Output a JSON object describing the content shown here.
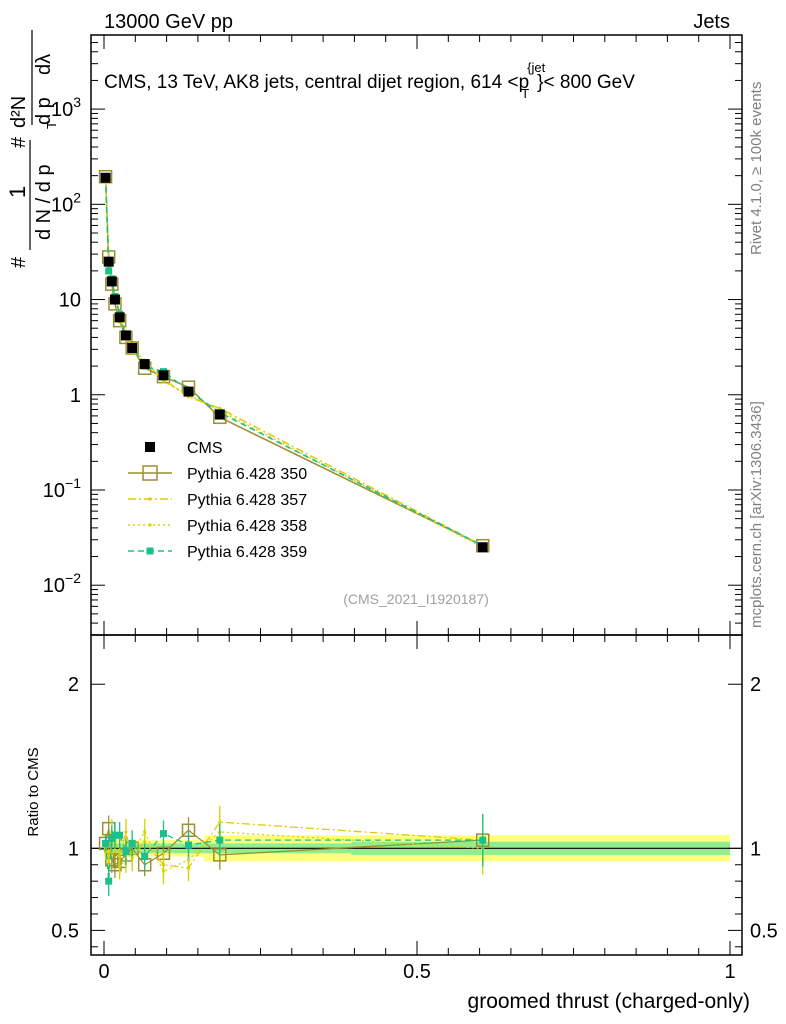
{
  "header": {
    "energy_label": "13000 GeV pp",
    "category_label": "Jets"
  },
  "side_labels": {
    "rivet": "Rivet 4.1.0, ≥ 100k events",
    "mcplots": "mcplots.cern.ch [arXiv:1306.3436]"
  },
  "chart_data": [
    {
      "type": "line",
      "panel": "main",
      "title": "CMS, 13 TeV, AK8 jets, central dijet region, 614 <p_T^{jet}< 800 GeV",
      "title_parts": {
        "prefix": "CMS, 13 TeV, AK8 jets, central dijet region, 614 <",
        "p": "p",
        "sub": "T",
        "sup": "{jet",
        "suffix": "}< 800 GeV"
      },
      "ylabel": "1/dN/dp_T  d²N/dp_T dλ",
      "ylabel_parts": {
        "hash": "#",
        "one": "1",
        "dN": "d N / d p",
        "T": "T",
        "d2N": "d²N",
        "dp": "d p",
        "dlambda": "dλ"
      },
      "yscale": "log",
      "ylim": [
        0.003,
        6000
      ],
      "xlim": [
        -0.02,
        1.0
      ],
      "yticks": [
        {
          "value": 0.01,
          "base": "10",
          "exp": "−2"
        },
        {
          "value": 0.1,
          "base": "10",
          "exp": "−1"
        },
        {
          "value": 1,
          "base": "1",
          "exp": ""
        },
        {
          "value": 10,
          "base": "10",
          "exp": ""
        },
        {
          "value": 100,
          "base": "10",
          "exp": "2"
        },
        {
          "value": 1000,
          "base": "10",
          "exp": "3"
        }
      ],
      "watermark": "(CMS_2021_I1920187)",
      "legend_position": "lower-left",
      "x": [
        0.0025,
        0.0075,
        0.0125,
        0.0175,
        0.025,
        0.035,
        0.045,
        0.065,
        0.095,
        0.135,
        0.185,
        0.605
      ],
      "series": [
        {
          "name": "CMS",
          "color": "#000000",
          "style": "data",
          "values": [
            190,
            25,
            15.5,
            10,
            6.5,
            4.2,
            3.1,
            2.1,
            1.6,
            1.08,
            0.62,
            0.025
          ]
        },
        {
          "name": "Pythia 6.428 350",
          "color": "#99912f",
          "style": "solid-open-square",
          "values": [
            195,
            28,
            14.5,
            9.0,
            6.0,
            4.0,
            3.1,
            1.9,
            1.55,
            1.2,
            0.58,
            0.026
          ]
        },
        {
          "name": "Pythia 6.428 357",
          "color": "#e6c800",
          "style": "dashdot",
          "values": [
            185,
            23,
            16.0,
            10.5,
            6.2,
            4.6,
            2.9,
            2.2,
            1.45,
            0.95,
            0.72,
            0.026
          ]
        },
        {
          "name": "Pythia 6.428 358",
          "color": "#d0d800",
          "style": "dotted",
          "values": [
            190,
            22,
            17.0,
            10.5,
            5.8,
            3.9,
            3.0,
            2.3,
            1.38,
            1.0,
            0.68,
            0.025
          ]
        },
        {
          "name": "Pythia 6.428 359",
          "color": "#1bbf8a",
          "style": "dashed",
          "values": [
            195,
            20,
            16.5,
            10.8,
            7.0,
            4.1,
            3.2,
            2.0,
            1.75,
            1.1,
            0.65,
            0.026
          ]
        }
      ]
    },
    {
      "type": "line",
      "panel": "ratio",
      "ylabel": "Ratio to CMS",
      "xlabel": "groomed thrust (charged-only)",
      "ylim": [
        0.35,
        2.3
      ],
      "xlim": [
        -0.02,
        1.0
      ],
      "yticks": [
        0.5,
        1,
        2
      ],
      "ytick_labels": [
        "0.5",
        "1",
        "2"
      ],
      "xticks": [
        0,
        0.5,
        1
      ],
      "xtick_labels": [
        "0",
        "0.5",
        "1"
      ],
      "x": [
        0.0025,
        0.0075,
        0.0125,
        0.0175,
        0.025,
        0.035,
        0.045,
        0.065,
        0.095,
        0.135,
        0.185,
        0.605
      ],
      "uncertainty_band": {
        "stat": {
          "color": "#90ee90",
          "lo": [
            0.97,
            0.97,
            0.97,
            0.97,
            0.97,
            0.97,
            0.97,
            0.97,
            0.97,
            0.97,
            0.97,
            0.96
          ],
          "hi": [
            1.03,
            1.03,
            1.03,
            1.03,
            1.03,
            1.03,
            1.03,
            1.03,
            1.03,
            1.03,
            1.03,
            1.04
          ]
        },
        "total": {
          "color": "#ffff80",
          "lo": [
            0.95,
            0.95,
            0.95,
            0.95,
            0.95,
            0.95,
            0.95,
            0.95,
            0.95,
            0.95,
            0.92,
            0.92
          ],
          "hi": [
            1.05,
            1.05,
            1.05,
            1.05,
            1.05,
            1.05,
            1.05,
            1.05,
            1.05,
            1.05,
            1.08,
            1.08
          ]
        }
      },
      "series": [
        {
          "name": "Pythia 6.428 350",
          "color": "#99912f",
          "style": "solid-open-square",
          "values": [
            1.03,
            1.12,
            0.93,
            0.9,
            0.92,
            0.96,
            1.0,
            0.9,
            0.97,
            1.11,
            0.96,
            1.05
          ],
          "err": [
            0.05,
            0.08,
            0.08,
            0.08,
            0.08,
            0.07,
            0.07,
            0.07,
            0.07,
            0.08,
            0.09,
            0.15
          ]
        },
        {
          "name": "Pythia 6.428 357",
          "color": "#e6c800",
          "style": "dashdot",
          "values": [
            0.98,
            0.92,
            1.03,
            1.05,
            0.95,
            1.1,
            0.94,
            1.04,
            0.9,
            0.88,
            1.16,
            1.05
          ],
          "err": [
            0.05,
            0.08,
            0.08,
            0.08,
            0.08,
            0.08,
            0.08,
            0.08,
            0.08,
            0.08,
            0.1,
            0.16
          ]
        },
        {
          "name": "Pythia 6.428 358",
          "color": "#d0d800",
          "style": "dotted",
          "values": [
            1.0,
            0.88,
            1.1,
            1.05,
            0.89,
            0.93,
            0.97,
            1.1,
            0.86,
            0.93,
            1.1,
            1.0
          ],
          "err": [
            0.05,
            0.08,
            0.08,
            0.08,
            0.08,
            0.08,
            0.08,
            0.08,
            0.08,
            0.08,
            0.1,
            0.16
          ]
        },
        {
          "name": "Pythia 6.428 359",
          "color": "#1bbf8a",
          "style": "dashed",
          "values": [
            1.03,
            0.8,
            1.06,
            1.08,
            1.08,
            0.98,
            1.03,
            0.95,
            1.09,
            1.02,
            1.05,
            1.05
          ],
          "err": [
            0.05,
            0.09,
            0.08,
            0.08,
            0.08,
            0.08,
            0.08,
            0.08,
            0.08,
            0.08,
            0.1,
            0.16
          ]
        }
      ]
    }
  ]
}
